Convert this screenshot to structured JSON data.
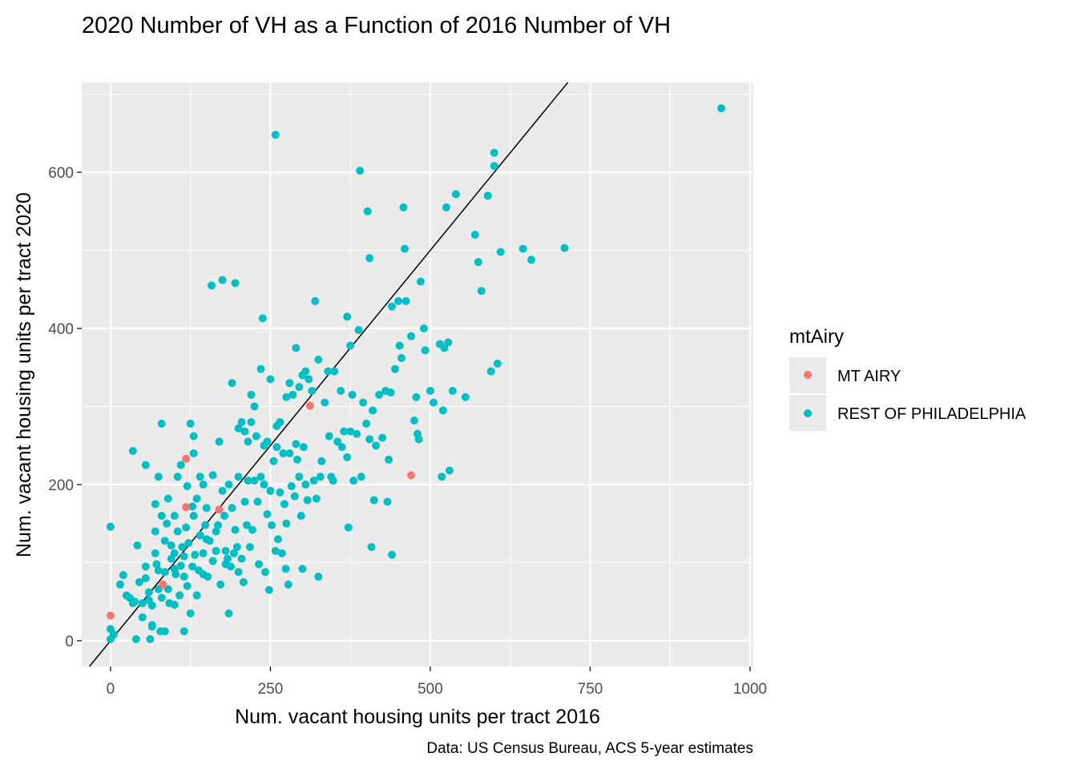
{
  "chart_data": {
    "type": "scatter",
    "title": "2020 Number of VH as a Function of 2016 Number of VH",
    "xlabel": "Num. vacant housing units per tract 2016",
    "ylabel": "Num. vacant housing units per tract 2020",
    "caption": "Data: US Census Bureau, ACS 5-year estimates",
    "xlim": [
      -45,
      1005
    ],
    "ylim": [
      -33,
      715
    ],
    "x_ticks": [
      0,
      250,
      500,
      750,
      1000
    ],
    "y_ticks": [
      0,
      200,
      400,
      600
    ],
    "grid": true,
    "legend": {
      "title": "mtAiry",
      "position": "right"
    },
    "reference_line": {
      "type": "identity",
      "slope": 1,
      "intercept": 0,
      "color": "#000000"
    },
    "series": [
      {
        "name": "MT AIRY",
        "color": "#F8766D",
        "points": [
          [
            0,
            32
          ],
          [
            82,
            72
          ],
          [
            118,
            233
          ],
          [
            118,
            171
          ],
          [
            170,
            168
          ],
          [
            312,
            301
          ],
          [
            470,
            212
          ]
        ]
      },
      {
        "name": "REST OF PHILADELPHIA",
        "color": "#00BFC4",
        "points": [
          [
            0,
            146
          ],
          [
            0,
            15
          ],
          [
            0,
            2
          ],
          [
            5,
            8
          ],
          [
            15,
            72
          ],
          [
            20,
            84
          ],
          [
            25,
            58
          ],
          [
            30,
            55
          ],
          [
            35,
            243
          ],
          [
            35,
            48
          ],
          [
            38,
            50
          ],
          [
            40,
            2
          ],
          [
            42,
            122
          ],
          [
            45,
            75
          ],
          [
            50,
            48
          ],
          [
            50,
            30
          ],
          [
            55,
            225
          ],
          [
            55,
            95
          ],
          [
            55,
            80
          ],
          [
            60,
            62
          ],
          [
            60,
            52
          ],
          [
            62,
            2
          ],
          [
            65,
            45
          ],
          [
            65,
            20
          ],
          [
            65,
            18
          ],
          [
            70,
            175
          ],
          [
            70,
            140
          ],
          [
            70,
            112
          ],
          [
            72,
            98
          ],
          [
            75,
            210
          ],
          [
            75,
            90
          ],
          [
            75,
            66
          ],
          [
            78,
            12
          ],
          [
            80,
            278
          ],
          [
            80,
            160
          ],
          [
            80,
            55
          ],
          [
            85,
            128
          ],
          [
            85,
            88
          ],
          [
            85,
            12
          ],
          [
            88,
            150
          ],
          [
            90,
            182
          ],
          [
            90,
            66
          ],
          [
            92,
            48
          ],
          [
            95,
            122
          ],
          [
            95,
            105
          ],
          [
            100,
            160
          ],
          [
            100,
            112
          ],
          [
            100,
            92
          ],
          [
            100,
            46
          ],
          [
            102,
            85
          ],
          [
            105,
            210
          ],
          [
            105,
            140
          ],
          [
            108,
            58
          ],
          [
            110,
            225
          ],
          [
            110,
            96
          ],
          [
            112,
            120
          ],
          [
            115,
            108
          ],
          [
            115,
            82
          ],
          [
            115,
            12
          ],
          [
            118,
            145
          ],
          [
            120,
            198
          ],
          [
            120,
            70
          ],
          [
            122,
            125
          ],
          [
            125,
            278
          ],
          [
            125,
            35
          ],
          [
            128,
            172
          ],
          [
            128,
            95
          ],
          [
            130,
            262
          ],
          [
            130,
            240
          ],
          [
            130,
            160
          ],
          [
            132,
            110
          ],
          [
            135,
            182
          ],
          [
            135,
            58
          ],
          [
            138,
            90
          ],
          [
            140,
            210
          ],
          [
            140,
            135
          ],
          [
            145,
            200
          ],
          [
            145,
            112
          ],
          [
            145,
            85
          ],
          [
            148,
            148
          ],
          [
            150,
            170
          ],
          [
            150,
            130
          ],
          [
            152,
            82
          ],
          [
            155,
            128
          ],
          [
            158,
            455
          ],
          [
            160,
            212
          ],
          [
            160,
            102
          ],
          [
            165,
            140
          ],
          [
            165,
            115
          ],
          [
            168,
            148
          ],
          [
            170,
            255
          ],
          [
            172,
            72
          ],
          [
            175,
            462
          ],
          [
            175,
            192
          ],
          [
            178,
            160
          ],
          [
            180,
            115
          ],
          [
            180,
            98
          ],
          [
            183,
            105
          ],
          [
            185,
            200
          ],
          [
            185,
            35
          ],
          [
            188,
            95
          ],
          [
            190,
            330
          ],
          [
            190,
            170
          ],
          [
            193,
            112
          ],
          [
            195,
            458
          ],
          [
            195,
            142
          ],
          [
            198,
            120
          ],
          [
            200,
            272
          ],
          [
            200,
            210
          ],
          [
            200,
            88
          ],
          [
            205,
            280
          ],
          [
            205,
            105
          ],
          [
            208,
            75
          ],
          [
            210,
            268
          ],
          [
            210,
            178
          ],
          [
            213,
            148
          ],
          [
            215,
            255
          ],
          [
            215,
            205
          ],
          [
            218,
            120
          ],
          [
            220,
            315
          ],
          [
            220,
            280
          ],
          [
            222,
            142
          ],
          [
            225,
            300
          ],
          [
            225,
            205
          ],
          [
            228,
            262
          ],
          [
            230,
            178
          ],
          [
            232,
            98
          ],
          [
            235,
            348
          ],
          [
            235,
            210
          ],
          [
            238,
            413
          ],
          [
            240,
            250
          ],
          [
            240,
            200
          ],
          [
            242,
            88
          ],
          [
            245,
            255
          ],
          [
            245,
            162
          ],
          [
            248,
            65
          ],
          [
            250,
            335
          ],
          [
            250,
            192
          ],
          [
            252,
            148
          ],
          [
            255,
            230
          ],
          [
            258,
            648
          ],
          [
            258,
            115
          ],
          [
            260,
            275
          ],
          [
            260,
            248
          ],
          [
            262,
            130
          ],
          [
            265,
            280
          ],
          [
            265,
            190
          ],
          [
            268,
            112
          ],
          [
            270,
            240
          ],
          [
            272,
            175
          ],
          [
            274,
            92
          ],
          [
            275,
            312
          ],
          [
            275,
            150
          ],
          [
            278,
            72
          ],
          [
            280,
            330
          ],
          [
            280,
            240
          ],
          [
            283,
            198
          ],
          [
            285,
            315
          ],
          [
            288,
            185
          ],
          [
            290,
            375
          ],
          [
            290,
            252
          ],
          [
            292,
            232
          ],
          [
            295,
            325
          ],
          [
            295,
            210
          ],
          [
            298,
            160
          ],
          [
            300,
            340
          ],
          [
            300,
            92
          ],
          [
            302,
            248
          ],
          [
            305,
            345
          ],
          [
            305,
            200
          ],
          [
            308,
            180
          ],
          [
            310,
            335
          ],
          [
            315,
            320
          ],
          [
            318,
            205
          ],
          [
            320,
            435
          ],
          [
            322,
            182
          ],
          [
            325,
            360
          ],
          [
            325,
            82
          ],
          [
            328,
            210
          ],
          [
            330,
            230
          ],
          [
            335,
            305
          ],
          [
            340,
            345
          ],
          [
            342,
            262
          ],
          [
            345,
            210
          ],
          [
            348,
            205
          ],
          [
            350,
            345
          ],
          [
            355,
            255
          ],
          [
            360,
            320
          ],
          [
            362,
            248
          ],
          [
            365,
            268
          ],
          [
            370,
            415
          ],
          [
            370,
            235
          ],
          [
            372,
            145
          ],
          [
            375,
            378
          ],
          [
            375,
            268
          ],
          [
            378,
            315
          ],
          [
            380,
            205
          ],
          [
            385,
            265
          ],
          [
            388,
            398
          ],
          [
            390,
            602
          ],
          [
            392,
            210
          ],
          [
            395,
            305
          ],
          [
            400,
            278
          ],
          [
            402,
            550
          ],
          [
            405,
            490
          ],
          [
            405,
            258
          ],
          [
            408,
            120
          ],
          [
            410,
            295
          ],
          [
            412,
            180
          ],
          [
            415,
            250
          ],
          [
            420,
            315
          ],
          [
            425,
            260
          ],
          [
            430,
            320
          ],
          [
            433,
            178
          ],
          [
            435,
            232
          ],
          [
            438,
            318
          ],
          [
            440,
            110
          ],
          [
            440,
            428
          ],
          [
            445,
            348
          ],
          [
            450,
            435
          ],
          [
            452,
            378
          ],
          [
            455,
            362
          ],
          [
            458,
            555
          ],
          [
            460,
            502
          ],
          [
            462,
            435
          ],
          [
            470,
            390
          ],
          [
            475,
            282
          ],
          [
            478,
            312
          ],
          [
            480,
            265
          ],
          [
            482,
            258
          ],
          [
            485,
            460
          ],
          [
            490,
            400
          ],
          [
            492,
            372
          ],
          [
            500,
            320
          ],
          [
            505,
            305
          ],
          [
            515,
            380
          ],
          [
            518,
            210
          ],
          [
            520,
            295
          ],
          [
            522,
            375
          ],
          [
            525,
            555
          ],
          [
            528,
            382
          ],
          [
            530,
            218
          ],
          [
            535,
            320
          ],
          [
            540,
            572
          ],
          [
            555,
            312
          ],
          [
            570,
            520
          ],
          [
            575,
            485
          ],
          [
            580,
            448
          ],
          [
            590,
            570
          ],
          [
            595,
            345
          ],
          [
            600,
            608
          ],
          [
            600,
            625
          ],
          [
            605,
            355
          ],
          [
            610,
            498
          ],
          [
            645,
            502
          ],
          [
            658,
            488
          ],
          [
            710,
            503
          ],
          [
            955,
            682
          ]
        ]
      }
    ]
  }
}
